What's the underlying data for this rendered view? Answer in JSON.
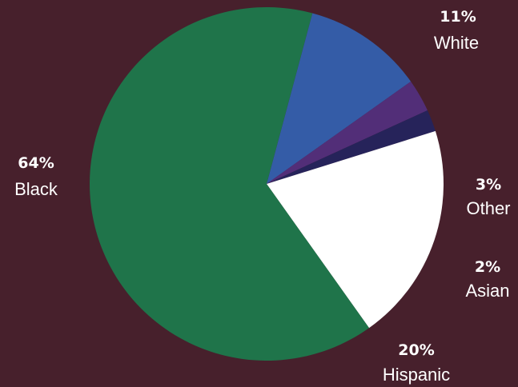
{
  "chart_data": {
    "type": "pie",
    "title": "",
    "legend": "none",
    "slices": [
      {
        "label": "White",
        "value": 11,
        "value_label": "11%",
        "color": "#345ca7"
      },
      {
        "label": "Other",
        "value": 3,
        "value_label": "3%",
        "color": "#522e78"
      },
      {
        "label": "Asian",
        "value": 2,
        "value_label": "2%",
        "color": "#26235a"
      },
      {
        "label": "Hispanic",
        "value": 20,
        "value_label": "20%",
        "color": "#ffffff"
      },
      {
        "label": "Black",
        "value": 64,
        "value_label": "64%",
        "color": "#1f744a"
      }
    ]
  },
  "colors": {
    "background": "#47202c",
    "label_text": "#ffffff"
  }
}
